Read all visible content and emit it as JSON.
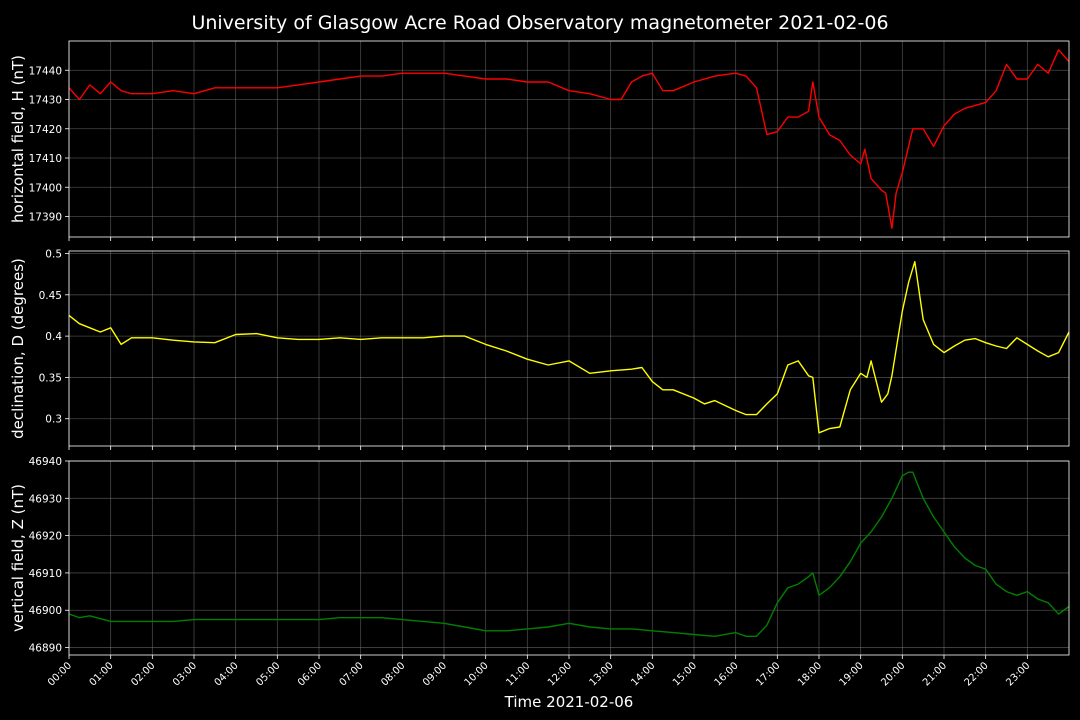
{
  "title": "University of Glasgow Acre Road Observatory magnetometer 2021-02-06",
  "xlabel": "Time 2021-02-06",
  "chart_data": [
    {
      "type": "line",
      "ylabel": "horizontal field, H (nT)",
      "series": [
        {
          "color": "#ff0000",
          "x": [
            0,
            0.25,
            0.5,
            0.75,
            1,
            1.25,
            1.5,
            2,
            2.5,
            3,
            3.5,
            4,
            4.5,
            5,
            5.5,
            6,
            6.5,
            7,
            7.5,
            8,
            8.5,
            9,
            9.5,
            10,
            10.5,
            11,
            11.5,
            12,
            12.5,
            13,
            13.25,
            13.5,
            13.75,
            14,
            14.25,
            14.5,
            15,
            15.5,
            16,
            16.25,
            16.5,
            16.75,
            17,
            17.25,
            17.5,
            17.75,
            17.85,
            18,
            18.25,
            18.5,
            18.75,
            19,
            19.1,
            19.25,
            19.5,
            19.6,
            19.75,
            19.85,
            20,
            20.25,
            20.5,
            20.75,
            21,
            21.25,
            21.5,
            21.75,
            22,
            22.25,
            22.5,
            22.75,
            23,
            23.25,
            23.5,
            23.75,
            24
          ],
          "values": [
            17434,
            17430,
            17435,
            17432,
            17436,
            17433,
            17432,
            17432,
            17433,
            17432,
            17434,
            17434,
            17434,
            17434,
            17435,
            17436,
            17437,
            17438,
            17438,
            17439,
            17439,
            17439,
            17438,
            17437,
            17437,
            17436,
            17436,
            17433,
            17432,
            17430,
            17430,
            17436,
            17438,
            17439,
            17433,
            17433,
            17436,
            17438,
            17439,
            17438,
            17434,
            17418,
            17419,
            17424,
            17424,
            17426,
            17436,
            17424,
            17418,
            17416,
            17411,
            17408,
            17413,
            17403,
            17399,
            17398,
            17386,
            17398,
            17405,
            17420,
            17420,
            17414,
            17421,
            17425,
            17427,
            17428,
            17429,
            17433,
            17442,
            17437,
            17437,
            17442,
            17439,
            17447,
            17443
          ]
        }
      ],
      "yticks": [
        17390,
        17400,
        17410,
        17420,
        17430,
        17440
      ],
      "ylim": [
        17383,
        17450
      ]
    },
    {
      "type": "line",
      "ylabel": "declination, D (degrees)",
      "series": [
        {
          "color": "#ffff00",
          "x": [
            0,
            0.25,
            0.5,
            0.75,
            1,
            1.25,
            1.5,
            2,
            2.5,
            3,
            3.5,
            4,
            4.5,
            5,
            5.5,
            6,
            6.5,
            7,
            7.5,
            8,
            8.5,
            9,
            9.5,
            10,
            10.5,
            11,
            11.5,
            12,
            12.5,
            13,
            13.5,
            13.75,
            14,
            14.25,
            14.5,
            15,
            15.25,
            15.5,
            16,
            16.25,
            16.5,
            16.75,
            17,
            17.25,
            17.5,
            17.75,
            17.85,
            18,
            18.25,
            18.5,
            18.75,
            19,
            19.15,
            19.25,
            19.5,
            19.65,
            19.75,
            20,
            20.15,
            20.3,
            20.5,
            20.75,
            21,
            21.25,
            21.5,
            21.75,
            22,
            22.25,
            22.5,
            22.75,
            23,
            23.25,
            23.5,
            23.75,
            24
          ],
          "values": [
            0.425,
            0.415,
            0.41,
            0.405,
            0.41,
            0.39,
            0.398,
            0.398,
            0.395,
            0.393,
            0.392,
            0.402,
            0.403,
            0.398,
            0.396,
            0.396,
            0.398,
            0.396,
            0.398,
            0.398,
            0.398,
            0.4,
            0.4,
            0.39,
            0.382,
            0.372,
            0.365,
            0.37,
            0.355,
            0.358,
            0.36,
            0.362,
            0.345,
            0.335,
            0.335,
            0.325,
            0.318,
            0.322,
            0.31,
            0.305,
            0.305,
            0.318,
            0.33,
            0.365,
            0.37,
            0.352,
            0.35,
            0.283,
            0.288,
            0.29,
            0.335,
            0.355,
            0.35,
            0.37,
            0.32,
            0.33,
            0.352,
            0.43,
            0.465,
            0.49,
            0.42,
            0.39,
            0.38,
            0.388,
            0.395,
            0.397,
            0.392,
            0.388,
            0.385,
            0.398,
            0.39,
            0.382,
            0.375,
            0.38,
            0.405
          ]
        }
      ],
      "yticks": [
        0.3,
        0.35,
        0.4,
        0.45,
        0.5
      ],
      "ylim": [
        0.267,
        0.503
      ]
    },
    {
      "type": "line",
      "ylabel": "vertical field, Z (nT)",
      "series": [
        {
          "color": "#008000",
          "x": [
            0,
            0.25,
            0.5,
            1,
            1.5,
            2,
            2.5,
            3,
            3.5,
            4,
            4.5,
            5,
            5.5,
            6,
            6.5,
            7,
            7.5,
            8,
            8.5,
            9,
            9.5,
            10,
            10.5,
            11,
            11.5,
            12,
            12.5,
            13,
            13.5,
            14,
            14.5,
            15,
            15.5,
            16,
            16.25,
            16.5,
            16.75,
            17,
            17.25,
            17.5,
            17.75,
            17.85,
            18,
            18.25,
            18.5,
            18.75,
            19,
            19.25,
            19.5,
            19.75,
            20,
            20.15,
            20.25,
            20.5,
            20.75,
            21,
            21.25,
            21.5,
            21.75,
            22,
            22.25,
            22.5,
            22.75,
            23,
            23.25,
            23.5,
            23.75,
            24
          ],
          "values": [
            46899,
            46898,
            46898.5,
            46897,
            46897,
            46897,
            46897,
            46897.5,
            46897.5,
            46897.5,
            46897.5,
            46897.5,
            46897.5,
            46897.5,
            46898,
            46898,
            46898,
            46897.5,
            46897,
            46896.5,
            46895.5,
            46894.5,
            46894.5,
            46895,
            46895.5,
            46896.5,
            46895.5,
            46895,
            46895,
            46894.5,
            46894,
            46893.5,
            46893,
            46894,
            46893,
            46893,
            46896,
            46902,
            46906,
            46907,
            46909,
            46910,
            46904,
            46906,
            46909,
            46913,
            46918,
            46921,
            46925,
            46930,
            46936,
            46937,
            46937,
            46930,
            46925,
            46921,
            46917,
            46914,
            46912,
            46911,
            46907,
            46905,
            46904,
            46905,
            46903,
            46902,
            46899,
            46901
          ]
        }
      ],
      "yticks": [
        46890,
        46900,
        46910,
        46920,
        46930,
        46940
      ],
      "ylim": [
        46888,
        46940
      ]
    }
  ],
  "x_axis": {
    "xlim": [
      0,
      24
    ],
    "tick_labels": [
      "00:00",
      "01:00",
      "02:00",
      "03:00",
      "04:00",
      "05:00",
      "06:00",
      "07:00",
      "08:00",
      "09:00",
      "10:00",
      "11:00",
      "12:00",
      "13:00",
      "14:00",
      "15:00",
      "16:00",
      "17:00",
      "18:00",
      "19:00",
      "20:00",
      "21:00",
      "22:00",
      "23:00"
    ]
  },
  "grid": true
}
